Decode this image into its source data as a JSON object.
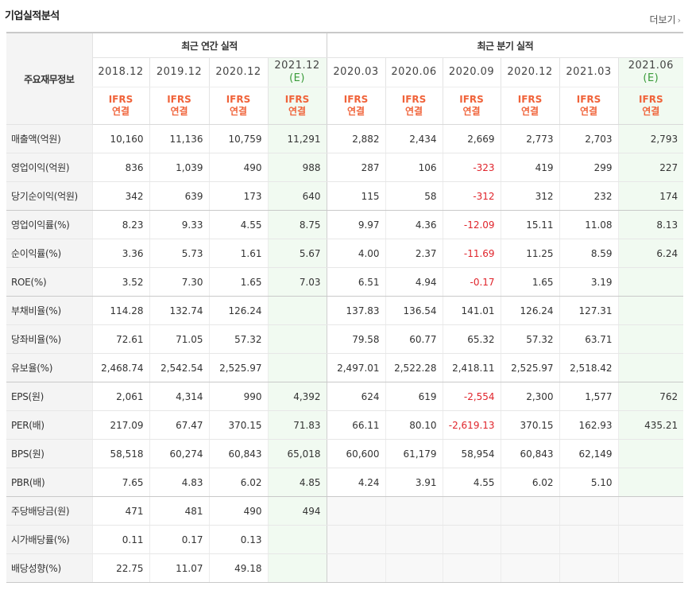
{
  "section": {
    "title": "기업실적분석",
    "more_label": "더보기"
  },
  "table": {
    "corner_label": "주요재무정보",
    "groups": {
      "annual": "최근 연간 실적",
      "quarterly": "최근 분기 실적"
    },
    "periods": [
      {
        "label": "2018.12",
        "sub": "",
        "estimate": false
      },
      {
        "label": "2019.12",
        "sub": "",
        "estimate": false
      },
      {
        "label": "2020.12",
        "sub": "",
        "estimate": false
      },
      {
        "label": "2021.12",
        "sub": "(E)",
        "estimate": true
      },
      {
        "label": "2020.03",
        "sub": "",
        "estimate": false
      },
      {
        "label": "2020.06",
        "sub": "",
        "estimate": false
      },
      {
        "label": "2020.09",
        "sub": "",
        "estimate": false
      },
      {
        "label": "2020.12",
        "sub": "",
        "estimate": false
      },
      {
        "label": "2021.03",
        "sub": "",
        "estimate": false
      },
      {
        "label": "2021.06",
        "sub": "(E)",
        "estimate": true
      }
    ],
    "standard": {
      "line1": "IFRS",
      "line2": "연결"
    },
    "rows": [
      {
        "label": "매출액(억원)",
        "values": [
          "10,160",
          "11,136",
          "10,759",
          "11,291",
          "2,882",
          "2,434",
          "2,669",
          "2,773",
          "2,703",
          "2,793"
        ]
      },
      {
        "label": "영업이익(억원)",
        "values": [
          "836",
          "1,039",
          "490",
          "988",
          "287",
          "106",
          "-323",
          "419",
          "299",
          "227"
        ]
      },
      {
        "label": "당기순이익(억원)",
        "values": [
          "342",
          "639",
          "173",
          "640",
          "115",
          "58",
          "-312",
          "312",
          "232",
          "174"
        ],
        "group_end": true
      },
      {
        "label": "영업이익률(%)",
        "values": [
          "8.23",
          "9.33",
          "4.55",
          "8.75",
          "9.97",
          "4.36",
          "-12.09",
          "15.11",
          "11.08",
          "8.13"
        ]
      },
      {
        "label": "순이익률(%)",
        "values": [
          "3.36",
          "5.73",
          "1.61",
          "5.67",
          "4.00",
          "2.37",
          "-11.69",
          "11.25",
          "8.59",
          "6.24"
        ]
      },
      {
        "label": "ROE(%)",
        "values": [
          "3.52",
          "7.30",
          "1.65",
          "7.03",
          "6.51",
          "4.94",
          "-0.17",
          "1.65",
          "3.19",
          ""
        ],
        "group_end": true
      },
      {
        "label": "부채비율(%)",
        "values": [
          "114.28",
          "132.74",
          "126.24",
          "",
          "137.83",
          "136.54",
          "141.01",
          "126.24",
          "127.31",
          ""
        ]
      },
      {
        "label": "당좌비율(%)",
        "values": [
          "72.61",
          "71.05",
          "57.32",
          "",
          "79.58",
          "60.77",
          "65.32",
          "57.32",
          "63.71",
          ""
        ]
      },
      {
        "label": "유보율(%)",
        "values": [
          "2,468.74",
          "2,542.54",
          "2,525.97",
          "",
          "2,497.01",
          "2,522.28",
          "2,418.11",
          "2,525.97",
          "2,518.42",
          ""
        ],
        "group_end": true
      },
      {
        "label": "EPS(원)",
        "values": [
          "2,061",
          "4,314",
          "990",
          "4,392",
          "624",
          "619",
          "-2,554",
          "2,300",
          "1,577",
          "762"
        ]
      },
      {
        "label": "PER(배)",
        "values": [
          "217.09",
          "67.47",
          "370.15",
          "71.83",
          "66.11",
          "80.10",
          "-2,619.13",
          "370.15",
          "162.93",
          "435.21"
        ]
      },
      {
        "label": "BPS(원)",
        "values": [
          "58,518",
          "60,274",
          "60,843",
          "65,018",
          "60,600",
          "61,179",
          "58,954",
          "60,843",
          "62,149",
          ""
        ]
      },
      {
        "label": "PBR(배)",
        "values": [
          "7.65",
          "4.83",
          "6.02",
          "4.85",
          "4.24",
          "3.91",
          "4.55",
          "6.02",
          "5.10",
          ""
        ],
        "group_end": true
      },
      {
        "label": "주당배당금(원)",
        "values": [
          "471",
          "481",
          "490",
          "494",
          "",
          "",
          "",
          "",
          "",
          ""
        ],
        "q_empty": true
      },
      {
        "label": "시가배당률(%)",
        "values": [
          "0.11",
          "0.17",
          "0.13",
          "",
          "",
          "",
          "",
          "",
          "",
          ""
        ],
        "q_empty": true
      },
      {
        "label": "배당성향(%)",
        "values": [
          "22.75",
          "11.07",
          "49.18",
          "",
          "",
          "",
          "",
          "",
          "",
          ""
        ],
        "q_empty": true,
        "last": true
      }
    ]
  }
}
